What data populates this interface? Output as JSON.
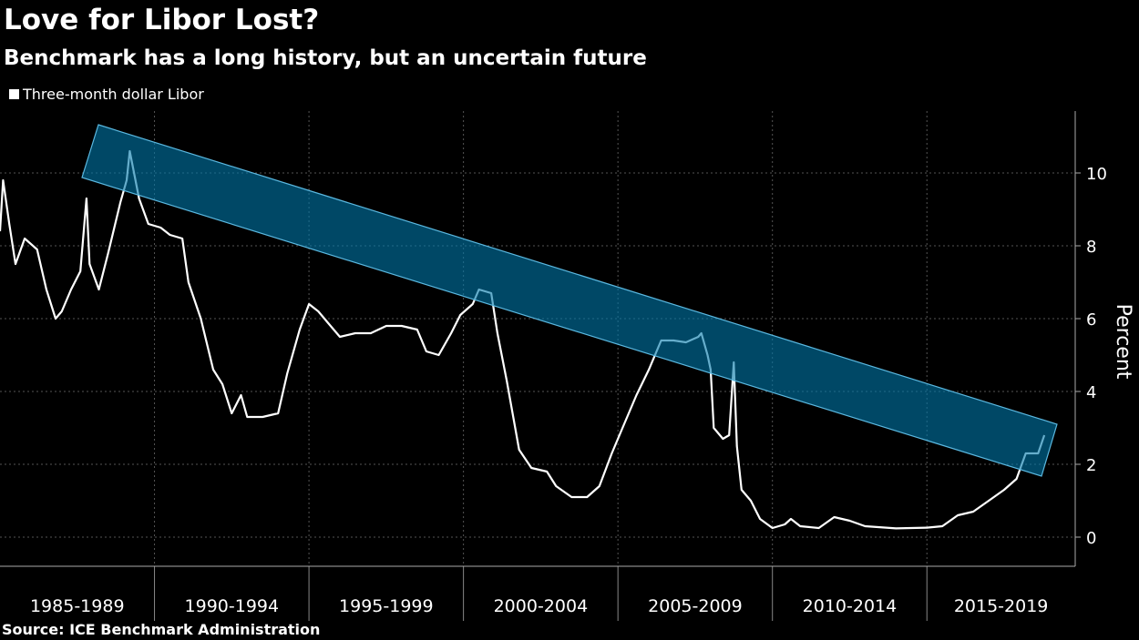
{
  "chart_data": {
    "type": "line",
    "title": "Love for Libor Lost?",
    "subtitle": "Benchmark has a long history, but an uncertain future",
    "source": "Source: ICE Benchmark Administration",
    "y_label": "Percent",
    "x_period_labels": [
      "1985-1989",
      "1990-1994",
      "1995-1999",
      "2000-2004",
      "2005-2009",
      "2010-2014",
      "2015-2019"
    ],
    "xlim": [
      1985,
      2019.8
    ],
    "xticks": [
      1990,
      1995,
      2000,
      2005,
      2010,
      2015
    ],
    "ylim": [
      -0.8,
      11.7
    ],
    "yticks": [
      0,
      2,
      4,
      6,
      8,
      10
    ],
    "grid": true,
    "legend": "top-left",
    "x": [
      1985.0,
      1985.1,
      1985.3,
      1985.5,
      1985.8,
      1986.2,
      1986.5,
      1986.8,
      1987.0,
      1987.3,
      1987.6,
      1987.8,
      1987.9,
      1988.2,
      1988.5,
      1988.9,
      1989.1,
      1989.2,
      1989.5,
      1989.8,
      1990.2,
      1990.5,
      1990.9,
      1991.1,
      1991.5,
      1991.9,
      1992.2,
      1992.5,
      1992.8,
      1993.0,
      1993.5,
      1994.0,
      1994.3,
      1994.7,
      1995.0,
      1995.3,
      1995.6,
      1996.0,
      1996.5,
      1997.0,
      1997.5,
      1998.0,
      1998.5,
      1998.8,
      1999.2,
      1999.6,
      1999.9,
      2000.3,
      2000.5,
      2000.9,
      2001.1,
      2001.4,
      2001.8,
      2002.2,
      2002.7,
      2003.0,
      2003.5,
      2004.0,
      2004.4,
      2004.8,
      2005.2,
      2005.6,
      2006.0,
      2006.4,
      2006.8,
      2007.2,
      2007.6,
      2007.7,
      2007.9,
      2008.0,
      2008.1,
      2008.4,
      2008.6,
      2008.75,
      2008.85,
      2009.0,
      2009.3,
      2009.6,
      2010.0,
      2010.4,
      2010.6,
      2010.9,
      2011.5,
      2012.0,
      2012.5,
      2013.0,
      2014.0,
      2015.0,
      2015.5,
      2016.0,
      2016.5,
      2017.0,
      2017.5,
      2017.9,
      2018.2,
      2018.6,
      2018.8
    ],
    "series": [
      {
        "name": "Three-month dollar Libor",
        "color": "#ffffff",
        "values": [
          8.4,
          9.8,
          8.6,
          7.5,
          8.2,
          7.9,
          6.8,
          6.0,
          6.2,
          6.8,
          7.3,
          9.3,
          7.5,
          6.8,
          7.8,
          9.2,
          9.8,
          10.6,
          9.3,
          8.6,
          8.5,
          8.3,
          8.2,
          7.0,
          6.0,
          4.6,
          4.2,
          3.4,
          3.9,
          3.3,
          3.3,
          3.4,
          4.5,
          5.7,
          6.4,
          6.2,
          5.9,
          5.5,
          5.6,
          5.6,
          5.8,
          5.8,
          5.7,
          5.1,
          5.0,
          5.6,
          6.1,
          6.4,
          6.8,
          6.7,
          5.6,
          4.3,
          2.4,
          1.9,
          1.8,
          1.4,
          1.1,
          1.1,
          1.4,
          2.3,
          3.1,
          3.9,
          4.6,
          5.4,
          5.4,
          5.35,
          5.5,
          5.6,
          5.0,
          4.6,
          3.0,
          2.7,
          2.8,
          4.8,
          2.5,
          1.3,
          1.0,
          0.5,
          0.25,
          0.35,
          0.5,
          0.3,
          0.25,
          0.55,
          0.45,
          0.3,
          0.24,
          0.26,
          0.3,
          0.6,
          0.7,
          1.0,
          1.3,
          1.6,
          2.3,
          2.3,
          2.8
        ]
      }
    ]
  }
}
